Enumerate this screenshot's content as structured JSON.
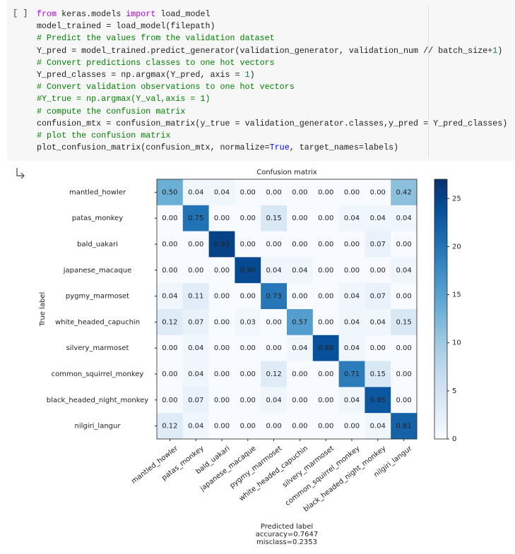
{
  "cell": {
    "run_label": "[ ]",
    "code": [
      [
        {
          "text": "from",
          "color": "#af00db"
        },
        {
          "text": " keras.models ",
          "color": "#212121"
        },
        {
          "text": "import",
          "color": "#af00db"
        },
        {
          "text": " load_model",
          "color": "#212121"
        }
      ],
      [
        {
          "text": "model_trained = load_model(filepath)",
          "color": "#212121"
        }
      ],
      [
        {
          "text": "# Predict the values from the validation dataset",
          "color": "#008000"
        }
      ],
      [
        {
          "text": "Y_pred = model_trained.predict_generator(validation_generator, validation_num // batch_size+",
          "color": "#212121"
        },
        {
          "text": "1",
          "color": "#098658"
        },
        {
          "text": ")",
          "color": "#212121"
        }
      ],
      [
        {
          "text": "# Convert predictions classes to one hot vectors",
          "color": "#008000"
        }
      ],
      [
        {
          "text": "Y_pred_classes = np.argmax(Y_pred, axis = ",
          "color": "#212121"
        },
        {
          "text": "1",
          "color": "#098658"
        },
        {
          "text": ")",
          "color": "#212121"
        }
      ],
      [
        {
          "text": "# Convert validation observations to one hot vectors",
          "color": "#008000"
        }
      ],
      [
        {
          "text": "#Y_true = np.argmax(Y_val,axis = 1)",
          "color": "#008000"
        }
      ],
      [
        {
          "text": "# compute the confusion matrix",
          "color": "#008000"
        }
      ],
      [
        {
          "text": "confusion_mtx = confusion_matrix(y_true = validation_generator.classes,y_pred = Y_pred_classes)",
          "color": "#212121"
        }
      ],
      [
        {
          "text": "# plot the confusion matrix",
          "color": "#008000"
        }
      ],
      [
        {
          "text": "plot_confusion_matrix(confusion_mtx, normalize=",
          "color": "#212121"
        },
        {
          "text": "True",
          "color": "#0000ff"
        },
        {
          "text": ", target_names=labels)",
          "color": "#212121"
        }
      ]
    ]
  },
  "chart_data": {
    "type": "heatmap",
    "title": "Confusion matrix",
    "ylabel": "True label",
    "xlabel": "Predicted label",
    "annotations": [
      "accuracy=0.7647",
      "misclass=0.2353"
    ],
    "categories": [
      "mantled_howler",
      "patas_monkey",
      "bald_uakari",
      "japanese_macaque",
      "pygmy_marmoset",
      "white_headed_capuchin",
      "silvery_marmoset",
      "common_squirrel_monkey",
      "black_headed_night_monkey",
      "nilgiri_langur"
    ],
    "values": [
      [
        0.5,
        0.04,
        0.04,
        0,
        0,
        0,
        0,
        0,
        0,
        0.42
      ],
      [
        0,
        0.75,
        0,
        0,
        0.15,
        0,
        0,
        0.04,
        0.04,
        0.04
      ],
      [
        0,
        0,
        0.93,
        0,
        0,
        0,
        0,
        0,
        0.07,
        0
      ],
      [
        0,
        0,
        0,
        0.9,
        0.04,
        0.04,
        0,
        0,
        0,
        0.04
      ],
      [
        0.04,
        0.11,
        0,
        0,
        0.73,
        0,
        0,
        0.04,
        0.07,
        0
      ],
      [
        0.12,
        0.07,
        0,
        0.03,
        0,
        0.57,
        0,
        0.04,
        0.04,
        0.15
      ],
      [
        0,
        0.04,
        0,
        0,
        0,
        0.04,
        0.88,
        0.04,
        0,
        0
      ],
      [
        0,
        0.04,
        0,
        0,
        0.12,
        0,
        0,
        0.71,
        0.15,
        0
      ],
      [
        0,
        0.07,
        0,
        0,
        0.04,
        0,
        0,
        0.04,
        0.85,
        0
      ],
      [
        0.12,
        0.04,
        0,
        0,
        0,
        0,
        0,
        0,
        0.04,
        0.81
      ]
    ],
    "value_labels": [
      [
        "0.50",
        "0.04",
        "0.04",
        "0.00",
        "0.00",
        "0.00",
        "0.00",
        "0.00",
        "0.00",
        "0.42"
      ],
      [
        "0.00",
        "0.75",
        "0.00",
        "0.00",
        "0.15",
        "0.00",
        "0.00",
        "0.04",
        "0.04",
        "0.04"
      ],
      [
        "0.00",
        "0.00",
        "0.93",
        "0.00",
        "0.00",
        "0.00",
        "0.00",
        "0.00",
        "0.07",
        "0.00"
      ],
      [
        "0.00",
        "0.00",
        "0.00",
        "0.90",
        "0.04",
        "0.04",
        "0.00",
        "0.00",
        "0.00",
        "0.04"
      ],
      [
        "0.04",
        "0.11",
        "0.00",
        "0.00",
        "0.73",
        "0.00",
        "0.00",
        "0.04",
        "0.07",
        "0.00"
      ],
      [
        "0.12",
        "0.07",
        "0.00",
        "0.03",
        "0.00",
        "0.57",
        "0.00",
        "0.04",
        "0.04",
        "0.15"
      ],
      [
        "0.00",
        "0.04",
        "0.00",
        "0.00",
        "0.00",
        "0.04",
        "0.88",
        "0.04",
        "0.00",
        "0.00"
      ],
      [
        "0.00",
        "0.04",
        "0.00",
        "0.00",
        "0.12",
        "0.00",
        "0.00",
        "0.71",
        "0.15",
        "0.00"
      ],
      [
        "0.00",
        "0.07",
        "0.00",
        "0.00",
        "0.04",
        "0.00",
        "0.00",
        "0.04",
        "0.85",
        "0.00"
      ],
      [
        "0.12",
        "0.04",
        "0.00",
        "0.00",
        "0.00",
        "0.00",
        "0.00",
        "0.00",
        "0.04",
        "0.81"
      ]
    ],
    "colormap": "Blues",
    "clim": [
      0,
      27
    ],
    "cticks": [
      0,
      5,
      10,
      15,
      20,
      25
    ]
  }
}
